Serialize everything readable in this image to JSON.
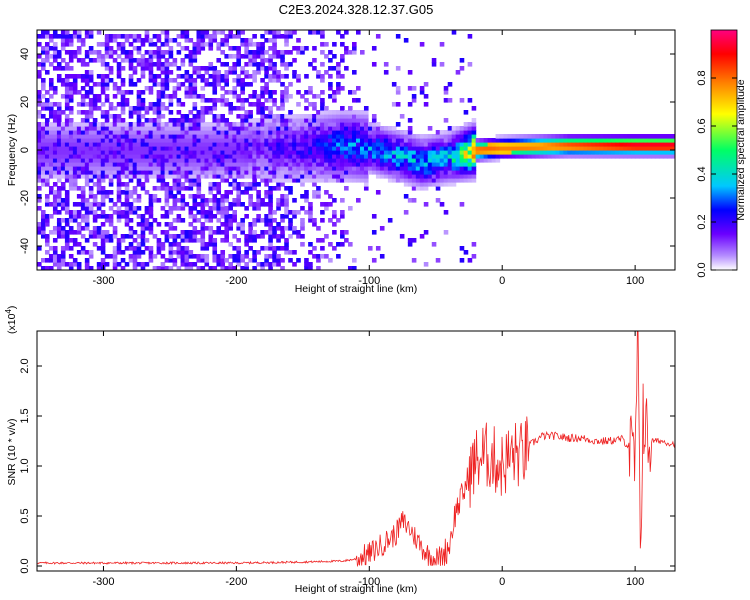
{
  "figure": {
    "title": "C2E3.2024.328.12.37.G05"
  },
  "chart_data": [
    {
      "type": "heatmap",
      "xlabel": "Height of straight line (km)",
      "ylabel": "Frequency (Hz)",
      "xlim": [
        -350,
        130
      ],
      "ylim": [
        -50,
        50
      ],
      "xticks": [
        "-300",
        "-200",
        "-100",
        "0",
        "100"
      ],
      "xtick_values": [
        -300,
        -200,
        -100,
        0,
        100
      ],
      "yticks": [
        "-40",
        "-20",
        "0",
        "20",
        "40"
      ],
      "ytick_values": [
        -40,
        -20,
        0,
        20,
        40
      ],
      "colorbar": {
        "label": "Normalized spectral amplitude",
        "range": [
          0,
          1
        ],
        "ticks": [
          "0.0",
          "0.2",
          "0.4",
          "0.6",
          "0.8"
        ],
        "tick_values": [
          0.0,
          0.2,
          0.4,
          0.6,
          0.8
        ],
        "colormap": [
          "#ffffff",
          "#6a00ff",
          "#0000ff",
          "#00c8ff",
          "#00ff64",
          "#ffff00",
          "#ff8000",
          "#ff0000",
          "#ff0080"
        ]
      },
      "ridge": {
        "x": [
          -200,
          -150,
          -120,
          -100,
          -80,
          -60,
          -40,
          -20,
          0,
          50,
          100,
          130
        ],
        "frequency": [
          0,
          1,
          2,
          1,
          -2,
          -5,
          -3,
          0,
          1,
          2,
          2,
          2
        ],
        "amplitude": [
          0.12,
          0.22,
          0.32,
          0.35,
          0.38,
          0.4,
          0.38,
          0.85,
          0.78,
          0.85,
          0.95,
          0.95
        ]
      },
      "grid": false
    },
    {
      "type": "line",
      "xlabel": "Height of straight line (km)",
      "ylabel": "SNR (10 * v/v)",
      "y_scale_label": "(x10",
      "y_scale_exp": "4",
      "y_scale_close": ")",
      "xlim": [
        -350,
        130
      ],
      "ylim": [
        -0.05,
        2.35
      ],
      "xticks": [
        "-300",
        "-200",
        "-100",
        "0",
        "100"
      ],
      "xtick_values": [
        -300,
        -200,
        -100,
        0,
        100
      ],
      "yticks": [
        "0.0",
        "0.5",
        "1.0",
        "1.5",
        "2.0"
      ],
      "ytick_values": [
        0.0,
        0.5,
        1.0,
        1.5,
        2.0
      ],
      "series": [
        {
          "color": "#ee2222",
          "x": [
            -350,
            -300,
            -250,
            -200,
            -150,
            -120,
            -110,
            -100,
            -90,
            -80,
            -75,
            -70,
            -65,
            -60,
            -55,
            -50,
            -45,
            -40,
            -35,
            -30,
            -25,
            -20,
            -15,
            -10,
            -5,
            0,
            5,
            10,
            15,
            20,
            25,
            30,
            40,
            50,
            60,
            70,
            80,
            90,
            95,
            100,
            102,
            104,
            106,
            108,
            110,
            115,
            120,
            125,
            130
          ],
          "values": [
            0.03,
            0.03,
            0.03,
            0.03,
            0.04,
            0.05,
            0.07,
            0.12,
            0.22,
            0.32,
            0.45,
            0.38,
            0.28,
            0.18,
            0.1,
            0.07,
            0.1,
            0.2,
            0.55,
            0.7,
            0.9,
            1.05,
            1.1,
            1.1,
            1.05,
            1.0,
            1.08,
            1.12,
            1.1,
            1.2,
            1.25,
            1.3,
            1.3,
            1.28,
            1.28,
            1.25,
            1.25,
            1.27,
            1.2,
            1.0,
            2.2,
            0.2,
            1.6,
            1.3,
            1.25,
            1.25,
            1.25,
            1.23,
            1.22
          ]
        }
      ],
      "grid": false
    }
  ]
}
